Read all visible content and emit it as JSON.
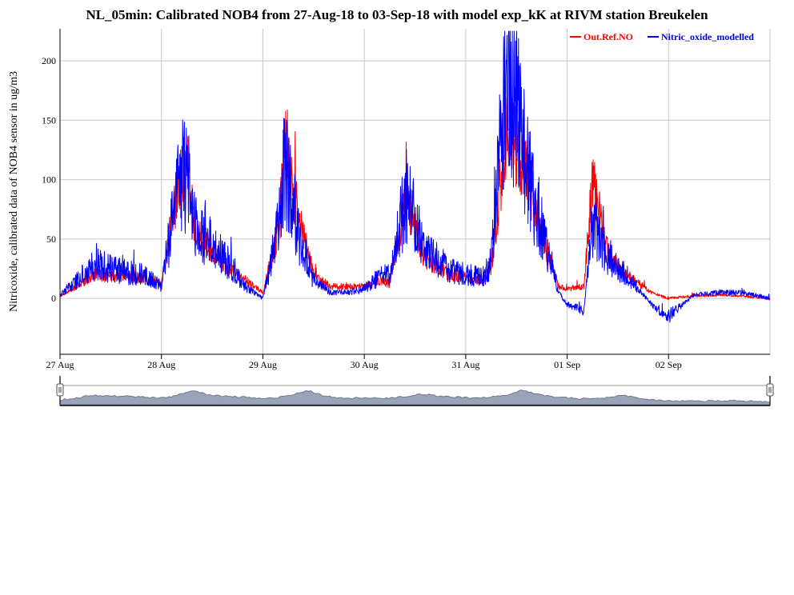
{
  "title": "NL_05min: Calibrated NOB4 from 27-Aug-18 to 03-Sep-18 with model exp_kK at RIVM station Breukelen",
  "colors": {
    "reference": "#ff0000",
    "modelled": "#0000ff",
    "grid": "#c8c8c8",
    "navigator_fill": "#9aa4b6",
    "navigator_line": "#6b7890"
  },
  "chart_data": {
    "type": "line",
    "title": "NL_05min: Calibrated NOB4 from 27-Aug-18 to 03-Sep-18 with model exp_kK at RIVM station Breukelen",
    "xlabel": "",
    "ylabel": "Nitricoxide, calibrated data of NOB4 sensor in ug/m3",
    "xlim": [
      "2018-08-27 00:00",
      "2018-09-03 00:00"
    ],
    "ylim": [
      -47,
      227
    ],
    "y_ticks": [
      0,
      50,
      100,
      150,
      200
    ],
    "x_ticks": [
      {
        "date": "2018-08-27",
        "label": "27 Aug"
      },
      {
        "date": "2018-08-28",
        "label": "28 Aug"
      },
      {
        "date": "2018-08-29",
        "label": "29 Aug"
      },
      {
        "date": "2018-08-30",
        "label": "30 Aug"
      },
      {
        "date": "2018-08-31",
        "label": "31 Aug"
      },
      {
        "date": "2018-09-01",
        "label": "01 Sep"
      },
      {
        "date": "2018-09-02",
        "label": "02 Sep"
      }
    ],
    "grid": true,
    "legend_position": "top-right",
    "series": [
      {
        "name": "Out.Ref.NO",
        "color": "#ff0000",
        "x": [
          "2018-08-27 00:00",
          "2018-08-27 04:00",
          "2018-08-27 08:00",
          "2018-08-27 12:00",
          "2018-08-27 16:00",
          "2018-08-27 20:00",
          "2018-08-28 00:00",
          "2018-08-28 04:00",
          "2018-08-28 06:00",
          "2018-08-28 08:00",
          "2018-08-28 12:00",
          "2018-08-28 16:00",
          "2018-08-28 20:00",
          "2018-08-29 00:00",
          "2018-08-29 04:00",
          "2018-08-29 05:00",
          "2018-08-29 08:00",
          "2018-08-29 12:00",
          "2018-08-29 16:00",
          "2018-08-29 20:00",
          "2018-08-30 00:00",
          "2018-08-30 04:00",
          "2018-08-30 06:00",
          "2018-08-30 10:00",
          "2018-08-30 14:00",
          "2018-08-30 20:00",
          "2018-08-31 00:00",
          "2018-08-31 04:00",
          "2018-08-31 06:00",
          "2018-08-31 10:00",
          "2018-08-31 14:00",
          "2018-08-31 18:00",
          "2018-08-31 22:00",
          "2018-09-01 00:00",
          "2018-09-01 04:00",
          "2018-09-01 06:00",
          "2018-09-01 10:00",
          "2018-09-01 14:00",
          "2018-09-01 20:00",
          "2018-09-02 00:00",
          "2018-09-02 06:00",
          "2018-09-02 12:00",
          "2018-09-02 18:00",
          "2018-09-03 00:00"
        ],
        "y": [
          2,
          10,
          20,
          18,
          19,
          17,
          12,
          95,
          115,
          55,
          40,
          25,
          15,
          5,
          60,
          145,
          75,
          20,
          10,
          10,
          10,
          15,
          12,
          85,
          35,
          20,
          18,
          15,
          25,
          145,
          110,
          55,
          10,
          8,
          10,
          100,
          35,
          20,
          5,
          0,
          2,
          3,
          2,
          0
        ]
      },
      {
        "name": "Nitric_oxide_modelled",
        "color": "#0000ff",
        "x": [
          "2018-08-27 00:00",
          "2018-08-27 04:00",
          "2018-08-27 08:00",
          "2018-08-27 12:00",
          "2018-08-27 16:00",
          "2018-08-27 20:00",
          "2018-08-28 00:00",
          "2018-08-28 04:00",
          "2018-08-28 06:00",
          "2018-08-28 08:00",
          "2018-08-28 12:00",
          "2018-08-28 16:00",
          "2018-08-28 20:00",
          "2018-08-29 00:00",
          "2018-08-29 04:00",
          "2018-08-29 05:00",
          "2018-08-29 08:00",
          "2018-08-29 12:00",
          "2018-08-29 16:00",
          "2018-08-29 20:00",
          "2018-08-30 00:00",
          "2018-08-30 04:00",
          "2018-08-30 06:00",
          "2018-08-30 10:00",
          "2018-08-30 14:00",
          "2018-08-30 20:00",
          "2018-08-31 00:00",
          "2018-08-31 04:00",
          "2018-08-31 06:00",
          "2018-08-31 10:00",
          "2018-08-31 14:00",
          "2018-08-31 18:00",
          "2018-08-31 22:00",
          "2018-09-01 00:00",
          "2018-09-01 04:00",
          "2018-09-01 06:00",
          "2018-09-01 10:00",
          "2018-09-01 14:00",
          "2018-09-01 20:00",
          "2018-09-02 00:00",
          "2018-09-02 06:00",
          "2018-09-02 12:00",
          "2018-09-02 18:00",
          "2018-09-03 00:00"
        ],
        "y": [
          3,
          15,
          30,
          25,
          22,
          20,
          10,
          100,
          105,
          60,
          45,
          30,
          10,
          0,
          65,
          120,
          60,
          15,
          5,
          5,
          8,
          20,
          20,
          88,
          40,
          25,
          20,
          18,
          30,
          205,
          115,
          60,
          5,
          -5,
          -10,
          65,
          35,
          20,
          -5,
          -15,
          3,
          5,
          5,
          0
        ]
      }
    ]
  },
  "navigator": {
    "type": "area",
    "values": [
      4,
      6,
      9,
      8,
      8,
      7,
      6,
      8,
      14,
      9,
      8,
      7,
      6,
      6,
      9,
      14,
      8,
      6,
      6,
      6,
      6,
      8,
      10,
      8,
      7,
      6,
      7,
      9,
      14,
      10,
      7,
      6,
      5,
      6,
      9,
      6,
      4,
      3,
      3,
      3,
      3,
      3,
      3,
      2
    ]
  }
}
